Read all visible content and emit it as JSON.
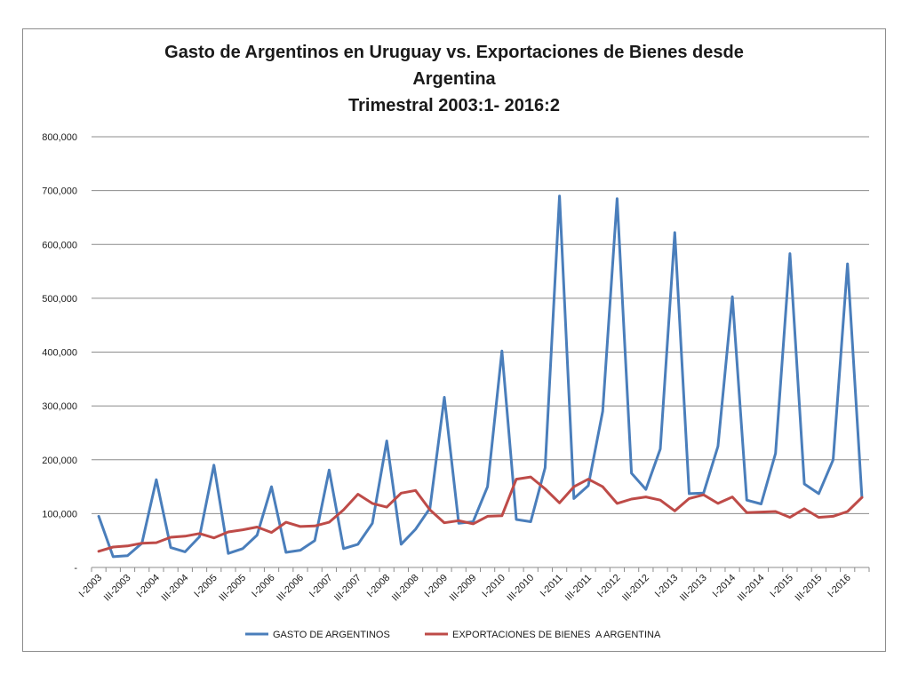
{
  "chart_data": {
    "type": "line",
    "title": [
      "Gasto de Argentinos en Uruguay  vs. Exportaciones de Bienes desde",
      "Argentina",
      "Trimestral  2003:1- 2016:2"
    ],
    "ylim": [
      0,
      800000
    ],
    "y_ticks": [
      0,
      100000,
      200000,
      300000,
      400000,
      500000,
      600000,
      700000,
      800000
    ],
    "y_tick_labels": [
      "-",
      "100,000",
      "200,000",
      "300,000",
      "400,000",
      "500,000",
      "600,000",
      "700,000",
      "800,000"
    ],
    "grid": true,
    "legend_position": "bottom",
    "x_tick_labels": [
      "I-2003",
      "III-2003",
      "I-2004",
      "III-2004",
      "I-2005",
      "III-2005",
      "I-2006",
      "III-2006",
      "I-2007",
      "III-2007",
      "I-2008",
      "III-2008",
      "I-2009",
      "III-2009",
      "I-2010",
      "III-2010",
      "I-2011",
      "III-2011",
      "I-2012",
      "III-2012",
      "I-2013",
      "III-2013",
      "I-2014",
      "III-2014",
      "I-2015",
      "III-2015",
      "I-2016"
    ],
    "categories": [
      "I-2003",
      "II-2003",
      "III-2003",
      "IV-2003",
      "I-2004",
      "II-2004",
      "III-2004",
      "IV-2004",
      "I-2005",
      "II-2005",
      "III-2005",
      "IV-2005",
      "I-2006",
      "II-2006",
      "III-2006",
      "IV-2006",
      "I-2007",
      "II-2007",
      "III-2007",
      "IV-2007",
      "I-2008",
      "II-2008",
      "III-2008",
      "IV-2008",
      "I-2009",
      "II-2009",
      "III-2009",
      "IV-2009",
      "I-2010",
      "II-2010",
      "III-2010",
      "IV-2010",
      "I-2011",
      "II-2011",
      "III-2011",
      "IV-2011",
      "I-2012",
      "II-2012",
      "III-2012",
      "IV-2012",
      "I-2013",
      "II-2013",
      "III-2013",
      "IV-2013",
      "I-2014",
      "II-2014",
      "III-2014",
      "IV-2014",
      "I-2015",
      "II-2015",
      "III-2015",
      "IV-2015",
      "I-2016",
      "II-2016"
    ],
    "series": [
      {
        "name": "GASTO DE ARGENTINOS",
        "color": "#4a7ebb",
        "values": [
          95000,
          20000,
          22000,
          45000,
          163000,
          37000,
          29000,
          57000,
          190000,
          26000,
          35000,
          60000,
          150000,
          28000,
          32000,
          50000,
          181000,
          35000,
          43000,
          82000,
          235000,
          43000,
          71000,
          110000,
          316000,
          82000,
          85000,
          150000,
          402000,
          89000,
          85000,
          185000,
          690000,
          128000,
          152000,
          290000,
          685000,
          175000,
          145000,
          220000,
          622000,
          137000,
          138000,
          225000,
          503000,
          125000,
          118000,
          212000,
          583000,
          155000,
          137000,
          200000,
          564000,
          130000
        ]
      },
      {
        "name": "EXPORTACIONES DE BIENES  A ARGENTINA",
        "color": "#be4b48",
        "values": [
          30000,
          38000,
          40000,
          45000,
          46000,
          56000,
          58000,
          63000,
          55000,
          66000,
          70000,
          75000,
          65000,
          84000,
          76000,
          77000,
          84000,
          107000,
          136000,
          119000,
          112000,
          138000,
          143000,
          107000,
          83000,
          87000,
          81000,
          95000,
          96000,
          164000,
          168000,
          146000,
          120000,
          150000,
          164000,
          150000,
          119000,
          127000,
          131000,
          125000,
          105000,
          128000,
          135000,
          119000,
          131000,
          102000,
          103000,
          104000,
          93000,
          109000,
          93000,
          95000,
          104000,
          130000
        ]
      }
    ]
  }
}
